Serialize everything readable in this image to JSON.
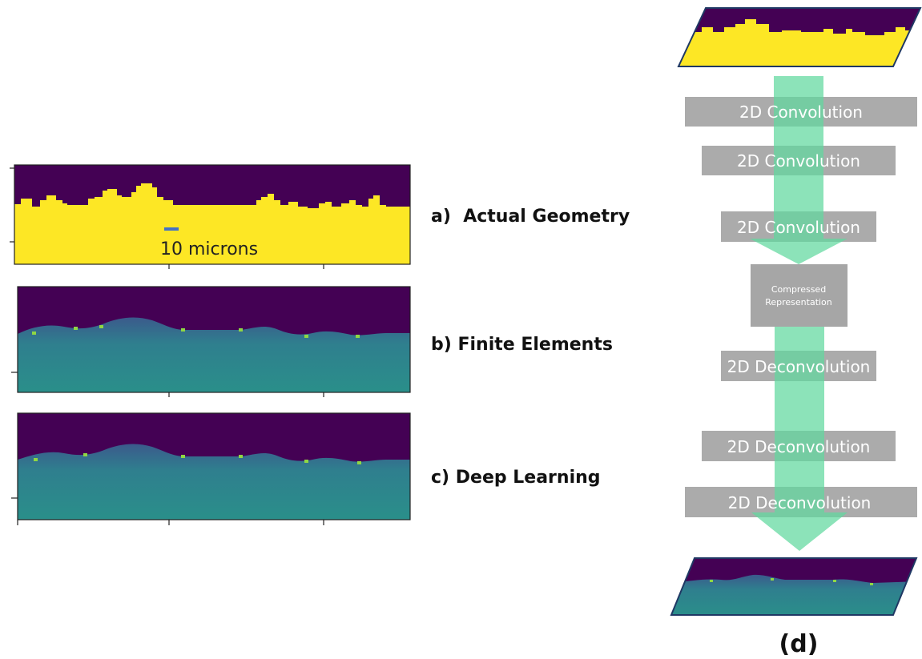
{
  "panels": {
    "a": {
      "label": "a)  Actual Geometry",
      "scale_label": "10 microns"
    },
    "b": {
      "label": "b) Finite Elements"
    },
    "c": {
      "label": "c) Deep Learning"
    }
  },
  "pipeline": {
    "convolution_blocks": [
      "2D Convolution",
      "2D Convolution",
      "2D Convolution"
    ],
    "compressed": [
      "Compressed",
      "Representation"
    ],
    "deconvolution_blocks": [
      "2D Deconvolution",
      "2D Deconvolution",
      "2D Deconvolution"
    ]
  },
  "figure_label": "(d)",
  "colors": {
    "background_purple": "#440154",
    "geometry_yellow": "#fde725",
    "field_teal": "#2c8d8c",
    "highlight_green": "#8fd744",
    "arrow_green": "#5fd89e",
    "block_gray": "#a6a6a6",
    "scale_bar_blue": "#4472c4",
    "frame_navy": "#1f3864"
  }
}
